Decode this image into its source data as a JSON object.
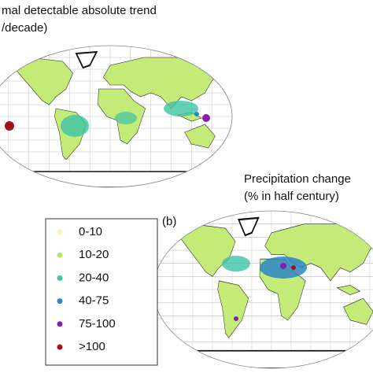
{
  "panel_a": {
    "title_lines": [
      "mal detectable absolute trend",
      "/decade)"
    ]
  },
  "panel_b": {
    "label": "(b)",
    "title_lines": [
      "Precipitation change",
      "(% in half century)"
    ]
  },
  "legend": {
    "items": [
      {
        "label": "0-10",
        "color": "#f6f7a8"
      },
      {
        "label": "10-20",
        "color": "#b9e46a"
      },
      {
        "label": "20-40",
        "color": "#3cc3a4"
      },
      {
        "label": "40-75",
        "color": "#2a86c4"
      },
      {
        "label": "75-100",
        "color": "#8a1eaa"
      },
      {
        "label": ">100",
        "color": "#a01414"
      }
    ]
  }
}
